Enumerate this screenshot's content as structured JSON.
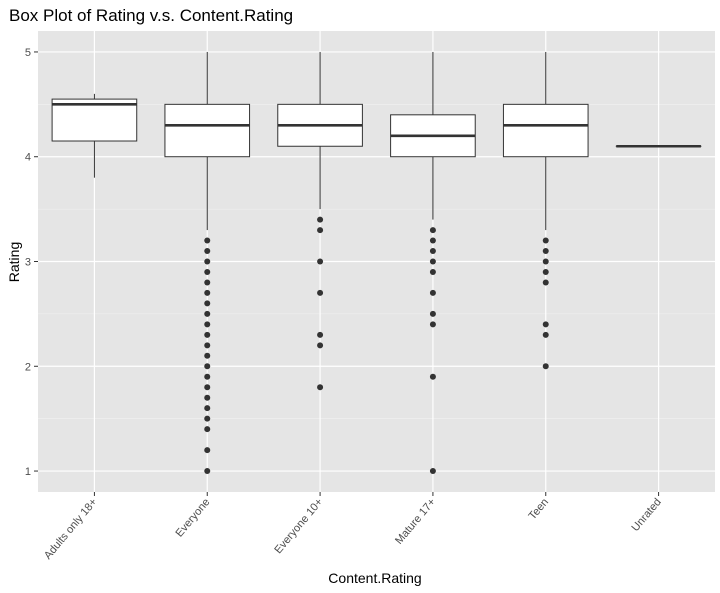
{
  "chart_data": {
    "type": "box",
    "title": "Box Plot of Rating v.s. Content.Rating",
    "xlabel": "Content.Rating",
    "ylabel": "Rating",
    "ylim": [
      0.8,
      5.2
    ],
    "yticks": [
      1,
      2,
      3,
      4,
      5
    ],
    "grid": true,
    "background": "#e5e5e5",
    "categories": [
      "Adults only 18+",
      "Everyone",
      "Everyone 10+",
      "Mature 17+",
      "Teen",
      "Unrated"
    ],
    "boxes": [
      {
        "category": "Adults only 18+",
        "whisker_low": 3.8,
        "q1": 4.15,
        "median": 4.5,
        "q3": 4.55,
        "whisker_high": 4.6,
        "outliers": []
      },
      {
        "category": "Everyone",
        "whisker_low": 3.3,
        "q1": 4.0,
        "median": 4.3,
        "q3": 4.5,
        "whisker_high": 5.0,
        "outliers": [
          3.2,
          3.1,
          3.0,
          2.9,
          2.8,
          2.7,
          2.6,
          2.5,
          2.4,
          2.3,
          2.2,
          2.1,
          2.0,
          1.9,
          1.8,
          1.7,
          1.6,
          1.5,
          1.4,
          1.2,
          1.0
        ]
      },
      {
        "category": "Everyone 10+",
        "whisker_low": 3.5,
        "q1": 4.1,
        "median": 4.3,
        "q3": 4.5,
        "whisker_high": 5.0,
        "outliers": [
          3.4,
          3.3,
          3.0,
          2.7,
          2.3,
          2.2,
          1.8
        ]
      },
      {
        "category": "Mature 17+",
        "whisker_low": 3.4,
        "q1": 4.0,
        "median": 4.2,
        "q3": 4.4,
        "whisker_high": 5.0,
        "outliers": [
          3.3,
          3.2,
          3.1,
          3.0,
          2.9,
          2.7,
          2.5,
          2.4,
          1.9,
          1.0
        ]
      },
      {
        "category": "Teen",
        "whisker_low": 3.3,
        "q1": 4.0,
        "median": 4.3,
        "q3": 4.5,
        "whisker_high": 5.0,
        "outliers": [
          3.2,
          3.1,
          3.0,
          2.9,
          2.8,
          2.4,
          2.3,
          2.0
        ]
      },
      {
        "category": "Unrated",
        "whisker_low": 4.1,
        "q1": 4.1,
        "median": 4.1,
        "q3": 4.1,
        "whisker_high": 4.1,
        "outliers": []
      }
    ]
  }
}
